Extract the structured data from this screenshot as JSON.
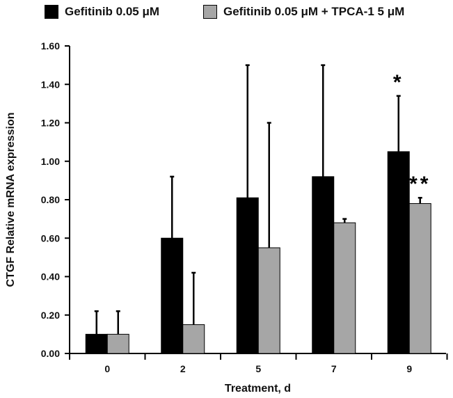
{
  "chart_data": {
    "type": "bar",
    "title": "",
    "xlabel": "Treatment, d",
    "ylabel": "CTGF Relative mRNA expression",
    "ylim": [
      0,
      1.6
    ],
    "ytick_step": 0.2,
    "ytick_labels": [
      "0.00",
      "0.20",
      "0.40",
      "0.60",
      "0.80",
      "1.00",
      "1.20",
      "1.40",
      "1.60"
    ],
    "categories": [
      "0",
      "2",
      "5",
      "7",
      "9"
    ],
    "legend_position": "top",
    "series": [
      {
        "name": "Gefitinib 0.05 μM",
        "color": "#000000",
        "values": [
          0.1,
          0.6,
          0.81,
          0.92,
          1.05
        ],
        "error_upper": [
          0.12,
          0.32,
          0.69,
          0.58,
          0.29
        ],
        "annotations": [
          "",
          "",
          "",
          "",
          "*"
        ]
      },
      {
        "name": "Gefitinib 0.05 μM + TPCA-1 5 μM",
        "color": "#a6a6a6",
        "values": [
          0.1,
          0.15,
          0.55,
          0.68,
          0.78
        ],
        "error_upper": [
          0.12,
          0.27,
          0.65,
          0.02,
          0.03
        ],
        "annotations": [
          "",
          "",
          "",
          "",
          "**"
        ]
      }
    ]
  }
}
